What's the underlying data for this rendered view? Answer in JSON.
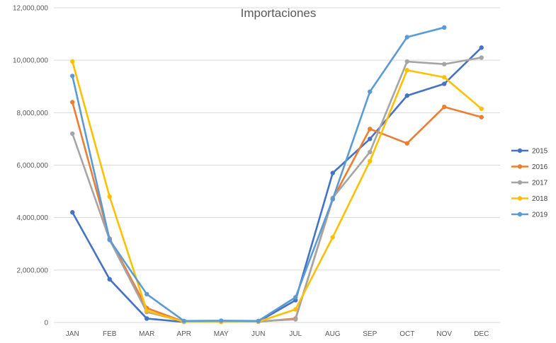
{
  "chart_data": {
    "type": "line",
    "title": "Importaciones",
    "xlabel": "",
    "ylabel": "",
    "categories": [
      "JAN",
      "FEB",
      "MAR",
      "APR",
      "MAY",
      "JUN",
      "JUL",
      "AUG",
      "SEP",
      "OCT",
      "NOV",
      "DEC"
    ],
    "ylim": [
      0,
      12000000
    ],
    "y_ticks": [
      0,
      2000000,
      4000000,
      6000000,
      8000000,
      10000000,
      12000000
    ],
    "y_tick_labels": [
      "0",
      "2,000,000",
      "4,000,000",
      "6,000,000",
      "8,000,000",
      "10,000,000",
      "12,000,000"
    ],
    "grid": true,
    "legend_position": "right",
    "series": [
      {
        "name": "2015",
        "color": "#4472C4",
        "values": [
          4200000,
          1650000,
          150000,
          20000,
          50000,
          30000,
          850000,
          5700000,
          7000000,
          8650000,
          9100000,
          10480000
        ]
      },
      {
        "name": "2016",
        "color": "#ED7D31",
        "values": [
          8400000,
          3200000,
          550000,
          30000,
          40000,
          30000,
          150000,
          4700000,
          7380000,
          6830000,
          8220000,
          7830000
        ]
      },
      {
        "name": "2017",
        "color": "#A5A5A5",
        "values": [
          7200000,
          3150000,
          400000,
          40000,
          50000,
          40000,
          120000,
          4750000,
          6500000,
          9950000,
          9850000,
          10100000
        ]
      },
      {
        "name": "2018",
        "color": "#FFC000",
        "values": [
          9950000,
          4800000,
          450000,
          20000,
          20000,
          30000,
          500000,
          3250000,
          6150000,
          9620000,
          9350000,
          8150000
        ]
      },
      {
        "name": "2019",
        "color": "#5B9BD5",
        "values": [
          9400000,
          3150000,
          1080000,
          60000,
          70000,
          60000,
          960000,
          4700000,
          8800000,
          10880000,
          11250000,
          null
        ]
      }
    ]
  }
}
